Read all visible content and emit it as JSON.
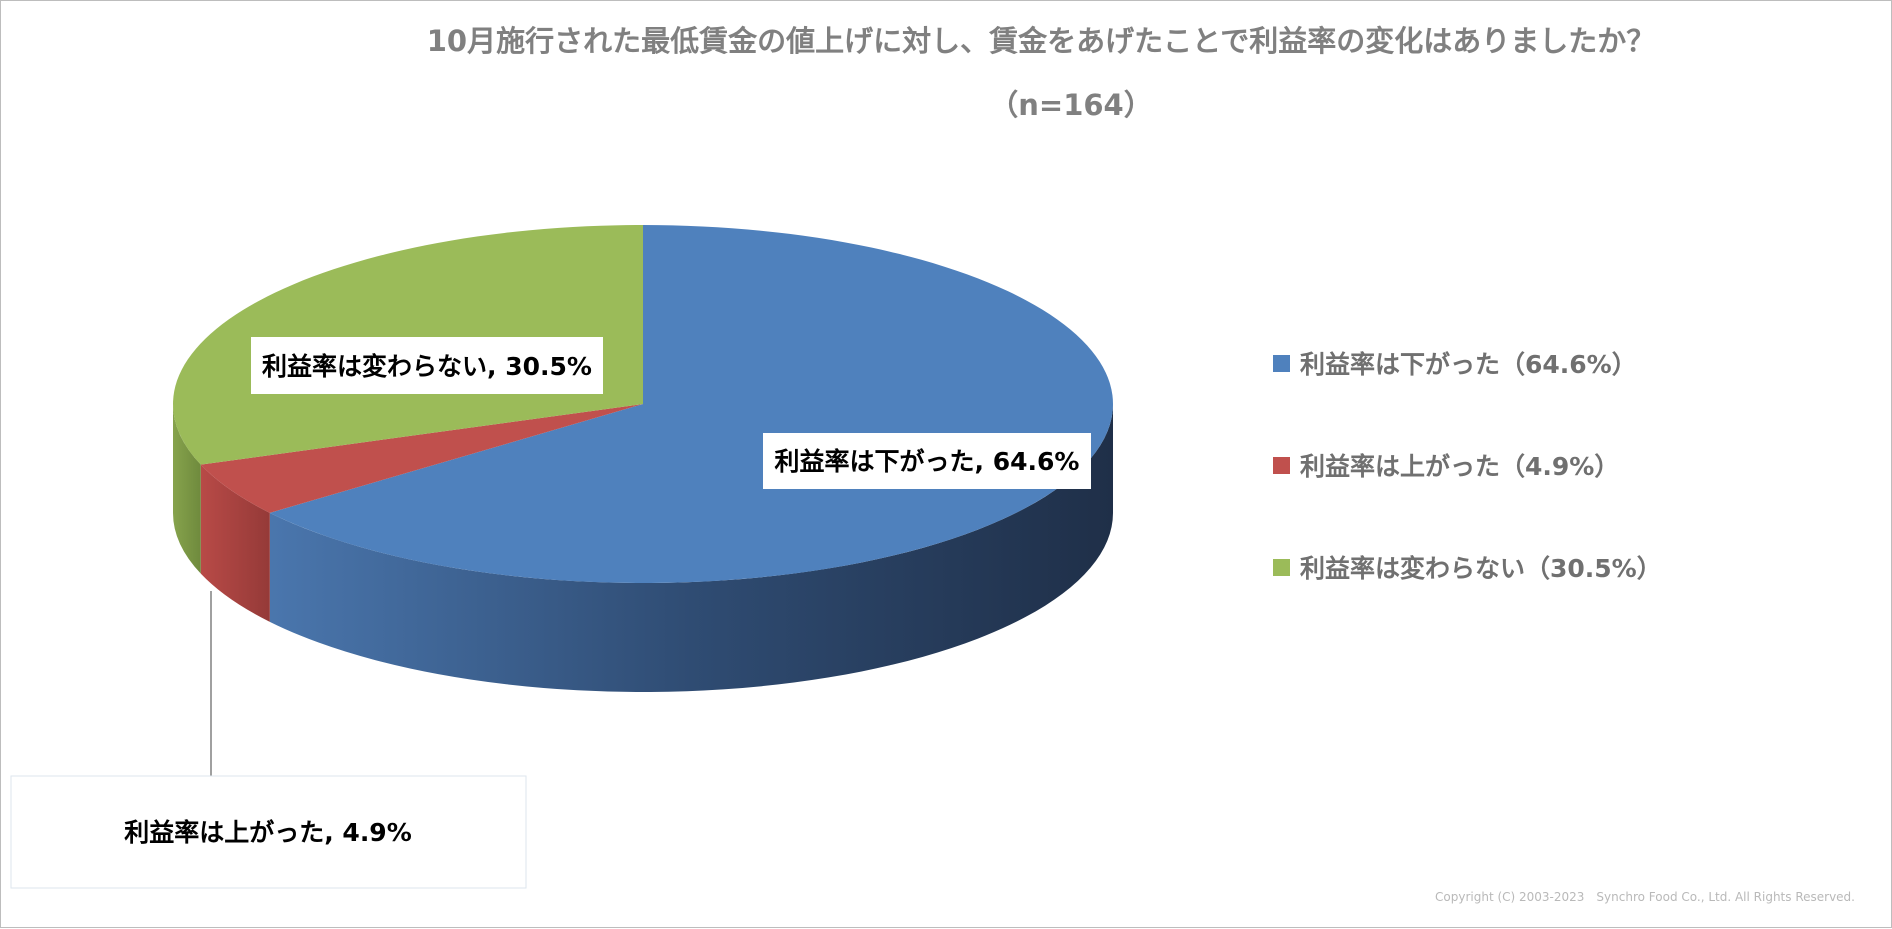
{
  "header": {
    "title": "10月施行された最低賃金の値上げに対し、賃金をあげたことで利益率の変化はありましたか？",
    "subtitle": "（n=164）"
  },
  "legend": [
    {
      "label": "利益率は下がった（64.6%）",
      "color": "#4F81BD"
    },
    {
      "label": "利益率は上がった（4.9%）",
      "color": "#C0504D"
    },
    {
      "label": "利益率は変わらない（30.5%）",
      "color": "#9BBB59"
    }
  ],
  "data_labels": {
    "down": "利益率は下がった, 64.6%",
    "up": "利益率は上がった, 4.9%",
    "same": "利益率は変わらない, 30.5%"
  },
  "footer": {
    "copyright": "Copyright (C) 2003-2023　Synchro Food Co., Ltd. All Rights Reserved."
  },
  "chart_data": {
    "type": "pie",
    "title": "10月施行された最低賃金の値上げに対し、賃金をあげたことで利益率の変化はありましたか？",
    "subtitle": "（n=164）",
    "style": "3d",
    "legend_position": "right",
    "categories": [
      "利益率は下がった",
      "利益率は上がった",
      "利益率は変わらない"
    ],
    "values": [
      64.6,
      4.9,
      30.5
    ],
    "unit": "%",
    "colors": [
      "#4F81BD",
      "#C0504D",
      "#9BBB59"
    ]
  }
}
